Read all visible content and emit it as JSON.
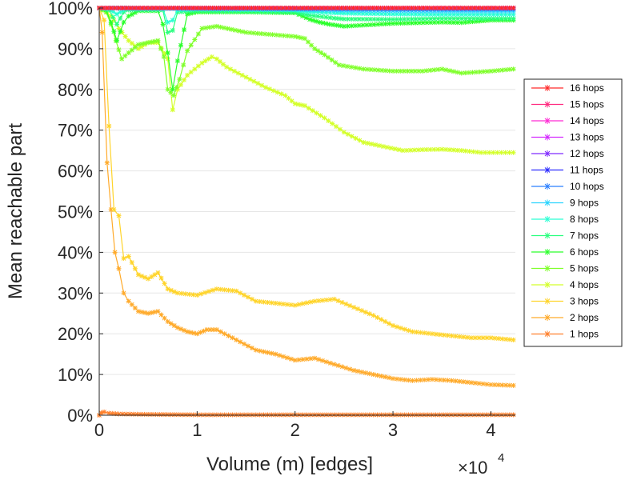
{
  "chart_data": {
    "type": "line",
    "xlabel": "Volume (m) [edges]",
    "ylabel": "Mean reachable part",
    "x_exponent_label": "×10",
    "x_exponent_power": "4",
    "xlim": [
      0,
      42500
    ],
    "ylim": [
      0,
      100
    ],
    "x_ticks": [
      0,
      10000,
      20000,
      30000,
      40000
    ],
    "x_tick_labels": [
      "0",
      "1",
      "2",
      "3",
      "4"
    ],
    "y_ticks": [
      0,
      10,
      20,
      30,
      40,
      50,
      60,
      70,
      80,
      90,
      100
    ],
    "y_tick_labels": [
      "0%",
      "10%",
      "20%",
      "30%",
      "40%",
      "50%",
      "60%",
      "70%",
      "80%",
      "90%",
      "100%"
    ],
    "grid": "horizontal",
    "legend_position": "right",
    "series": [
      {
        "name": "16 hops",
        "color": "#ff2a2a",
        "x": [
          0,
          42300
        ],
        "y": [
          100,
          100
        ]
      },
      {
        "name": "15 hops",
        "color": "#ff2a7f",
        "x": [
          0,
          42300
        ],
        "y": [
          100,
          100
        ]
      },
      {
        "name": "14 hops",
        "color": "#ff2ad4",
        "x": [
          0,
          42300
        ],
        "y": [
          100,
          100
        ]
      },
      {
        "name": "13 hops",
        "color": "#d42aff",
        "x": [
          0,
          42300
        ],
        "y": [
          100,
          100
        ]
      },
      {
        "name": "12 hops",
        "color": "#7f2aff",
        "x": [
          0,
          42300
        ],
        "y": [
          100,
          100
        ]
      },
      {
        "name": "11 hops",
        "color": "#2a2aff",
        "x": [
          0,
          42300
        ],
        "y": [
          100,
          100
        ]
      },
      {
        "name": "10 hops",
        "color": "#2a7fff",
        "x": [
          0,
          10000,
          20000,
          30000,
          42300
        ],
        "y": [
          100,
          99.9,
          99.8,
          99.7,
          99.7
        ]
      },
      {
        "name": "9 hops",
        "color": "#2ad4ff",
        "x": [
          0,
          5000,
          10000,
          20000,
          25000,
          30000,
          35000,
          42300
        ],
        "y": [
          100,
          99.9,
          99.8,
          99.6,
          99.4,
          99.3,
          99.2,
          99.2
        ]
      },
      {
        "name": "8 hops",
        "color": "#2affd4",
        "x": [
          0,
          1000,
          1800,
          2500,
          3000,
          6500,
          7000,
          7500,
          8000,
          10000,
          20000,
          21500,
          24000,
          25000,
          30000,
          35000,
          42300
        ],
        "y": [
          100,
          99.7,
          98.5,
          99.5,
          99.8,
          99.8,
          96.5,
          97,
          99.5,
          99.7,
          99.5,
          99,
          98.8,
          98.7,
          98.5,
          98.4,
          98.4
        ]
      },
      {
        "name": "7 hops",
        "color": "#2aff7f",
        "x": [
          0,
          1000,
          1800,
          2500,
          3000,
          6500,
          7000,
          7500,
          8000,
          10000,
          20000,
          21500,
          24000,
          25000,
          30000,
          35000,
          42300
        ],
        "y": [
          100,
          99.5,
          96,
          99,
          99.5,
          99.5,
          94,
          94.5,
          99,
          99.3,
          99,
          98.2,
          97.5,
          97.3,
          97.2,
          97.4,
          97.4
        ]
      },
      {
        "name": "6 hops",
        "color": "#2aff2a",
        "x": [
          0,
          700,
          1200,
          1800,
          2500,
          3000,
          4000,
          6000,
          6500,
          7000,
          7500,
          8000,
          9000,
          10000,
          15000,
          20000,
          21500,
          22500,
          23500,
          25000,
          30000,
          35000,
          37000,
          40000,
          42300
        ],
        "y": [
          100,
          99.5,
          96.5,
          92,
          96.5,
          98,
          99.3,
          99.3,
          96,
          89,
          80,
          87,
          98.5,
          99,
          99,
          98.8,
          97.2,
          96.5,
          96,
          95.5,
          96.2,
          96.5,
          96.4,
          97,
          97
        ]
      },
      {
        "name": "5 hops",
        "color": "#7fff2a",
        "x": [
          0,
          700,
          1200,
          1700,
          2300,
          3000,
          4000,
          5000,
          6000,
          6600,
          7000,
          7600,
          8200,
          9000,
          10500,
          12000,
          15000,
          20000,
          21000,
          22000,
          23000,
          24500,
          27000,
          30000,
          33000,
          35000,
          37000,
          40000,
          42300
        ],
        "y": [
          100,
          99,
          96,
          92,
          87.5,
          89,
          91,
          91.5,
          92,
          88,
          80,
          78.5,
          82.5,
          89.5,
          95,
          95.5,
          94,
          93,
          92.5,
          90,
          88.5,
          86,
          85,
          84.5,
          84.5,
          85,
          84,
          84.5,
          85
        ]
      },
      {
        "name": "4 hops",
        "color": "#d4ff2a",
        "x": [
          0,
          800,
          1500,
          2000,
          3000,
          4000,
          5000,
          6000,
          7000,
          7500,
          8000,
          9000,
          10500,
          11500,
          12000,
          13000,
          15000,
          17000,
          19000,
          20000,
          21000,
          23000,
          25000,
          27000,
          29000,
          31000,
          33000,
          35000,
          37000,
          39000,
          42300
        ],
        "y": [
          100,
          99,
          97,
          95,
          92,
          90,
          91.5,
          91.5,
          87.5,
          75,
          80,
          83.5,
          86.5,
          88,
          87.5,
          85.5,
          83,
          80.5,
          78.5,
          76.5,
          76,
          73,
          69.5,
          67,
          66,
          65,
          65.2,
          65.3,
          65,
          64.5,
          64.5
        ]
      },
      {
        "name": "3 hops",
        "color": "#ffd42a",
        "x": [
          0,
          500,
          1000,
          1500,
          2000,
          2500,
          3000,
          4000,
          5000,
          6000,
          7000,
          8000,
          10000,
          12000,
          14000,
          16000,
          18000,
          20000,
          22000,
          24000,
          26000,
          28000,
          30000,
          32000,
          34000,
          36000,
          38000,
          40000,
          42300
        ],
        "y": [
          100,
          97,
          71,
          50.5,
          49,
          38.5,
          39,
          34.5,
          33.5,
          35,
          31,
          30,
          29.5,
          31,
          30.5,
          28,
          27.5,
          27,
          28,
          28.5,
          26.5,
          24.5,
          22,
          20.5,
          20,
          19.5,
          19,
          19,
          18.5
        ]
      },
      {
        "name": "2 hops",
        "color": "#ffaa2a",
        "x": [
          0,
          300,
          800,
          1200,
          1600,
          2000,
          2500,
          3000,
          4000,
          5000,
          6000,
          7000,
          8000,
          9000,
          10000,
          11000,
          12000,
          14000,
          16000,
          18000,
          20000,
          22000,
          24000,
          26000,
          28000,
          30000,
          32000,
          34000,
          36000,
          38000,
          40000,
          42300
        ],
        "y": [
          100,
          94,
          62,
          50.5,
          40,
          36,
          30,
          28,
          25.5,
          25,
          25.5,
          23,
          21.5,
          20.5,
          20,
          21,
          21,
          18.5,
          16,
          15,
          13.5,
          14,
          12.5,
          11,
          10,
          9,
          8.5,
          8.8,
          8.5,
          8,
          7.5,
          7.3
        ]
      },
      {
        "name": "1 hops",
        "color": "#ff7f2a",
        "x": [
          0,
          200,
          500,
          1000,
          2000,
          5000,
          10000,
          20000,
          30000,
          42300
        ],
        "y": [
          0,
          0.6,
          0.8,
          0.5,
          0.3,
          0.2,
          0.1,
          0.1,
          0.1,
          0.1
        ]
      }
    ]
  }
}
